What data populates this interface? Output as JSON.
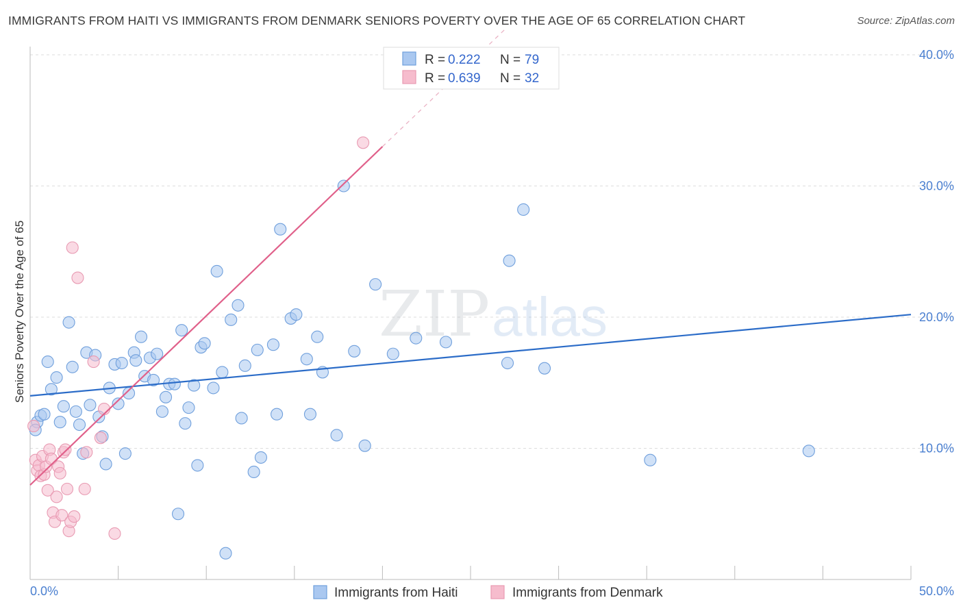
{
  "title": "IMMIGRANTS FROM HAITI VS IMMIGRANTS FROM DENMARK SENIORS POVERTY OVER THE AGE OF 65 CORRELATION CHART",
  "source": "Source: ZipAtlas.com",
  "watermark": {
    "zip": "ZIP",
    "atlas": "atlas"
  },
  "colors": {
    "haiti_fill": "#aac8f0",
    "haiti_stroke": "#6f9fdc",
    "haiti_line": "#2b6cc8",
    "denmark_fill": "#f6bccd",
    "denmark_stroke": "#e89ab2",
    "denmark_line": "#e0608a",
    "tick": "#4a7fd0",
    "grid": "#dddddd"
  },
  "legend_stats": [
    {
      "r_label": "R =",
      "r_value": "0.222",
      "n_label": "N =",
      "n_value": "79"
    },
    {
      "r_label": "R =",
      "r_value": "0.639",
      "n_label": "N =",
      "n_value": "32"
    }
  ],
  "chart_data": {
    "type": "scatter",
    "xlabel": "",
    "ylabel": "Seniors Poverty Over the Age of 65",
    "xlim": [
      0,
      50
    ],
    "ylim": [
      0,
      40
    ],
    "x_tick_labels": [
      "0.0%",
      "50.0%"
    ],
    "y_tick_labels": [
      "10.0%",
      "20.0%",
      "30.0%",
      "40.0%"
    ],
    "y_ticks": [
      10,
      20,
      30,
      40
    ],
    "legend": "bottom-center",
    "series": [
      {
        "name": "Immigrants from Haiti",
        "r": 0.222,
        "n": 79,
        "trend": {
          "x0": 0,
          "y0": 14.0,
          "x1": 50,
          "y1": 20.2
        },
        "points": [
          [
            0.4,
            12.0
          ],
          [
            0.6,
            12.5
          ],
          [
            0.8,
            12.6
          ],
          [
            1.0,
            16.6
          ],
          [
            1.2,
            14.5
          ],
          [
            1.5,
            15.4
          ],
          [
            1.7,
            12.0
          ],
          [
            1.9,
            13.2
          ],
          [
            2.2,
            19.6
          ],
          [
            2.4,
            16.2
          ],
          [
            2.6,
            12.8
          ],
          [
            2.8,
            11.8
          ],
          [
            3.0,
            9.6
          ],
          [
            3.2,
            17.3
          ],
          [
            3.4,
            13.3
          ],
          [
            3.7,
            17.1
          ],
          [
            3.9,
            12.4
          ],
          [
            4.1,
            10.9
          ],
          [
            4.3,
            8.8
          ],
          [
            4.5,
            14.6
          ],
          [
            4.8,
            16.4
          ],
          [
            5.0,
            13.4
          ],
          [
            5.2,
            16.5
          ],
          [
            5.4,
            9.6
          ],
          [
            5.6,
            14.2
          ],
          [
            5.9,
            17.3
          ],
          [
            6.0,
            16.7
          ],
          [
            6.3,
            18.5
          ],
          [
            6.5,
            15.5
          ],
          [
            6.8,
            16.9
          ],
          [
            7.0,
            15.2
          ],
          [
            7.2,
            17.2
          ],
          [
            7.5,
            12.8
          ],
          [
            7.7,
            13.9
          ],
          [
            7.9,
            14.9
          ],
          [
            8.2,
            14.9
          ],
          [
            8.4,
            5.0
          ],
          [
            8.6,
            19.0
          ],
          [
            8.8,
            11.9
          ],
          [
            9.0,
            13.1
          ],
          [
            9.3,
            14.8
          ],
          [
            9.5,
            8.7
          ],
          [
            9.7,
            17.7
          ],
          [
            9.9,
            18.0
          ],
          [
            10.4,
            14.6
          ],
          [
            10.6,
            23.5
          ],
          [
            10.9,
            15.8
          ],
          [
            11.1,
            2.0
          ],
          [
            11.4,
            19.8
          ],
          [
            11.8,
            20.9
          ],
          [
            12.0,
            12.3
          ],
          [
            12.2,
            16.3
          ],
          [
            12.7,
            8.2
          ],
          [
            12.9,
            17.5
          ],
          [
            13.1,
            9.3
          ],
          [
            13.8,
            17.9
          ],
          [
            14.0,
            12.6
          ],
          [
            14.2,
            26.7
          ],
          [
            14.8,
            19.9
          ],
          [
            15.1,
            20.2
          ],
          [
            15.7,
            16.8
          ],
          [
            15.9,
            12.6
          ],
          [
            16.3,
            18.5
          ],
          [
            16.6,
            15.8
          ],
          [
            17.4,
            11.0
          ],
          [
            17.8,
            30.0
          ],
          [
            18.4,
            17.4
          ],
          [
            19.0,
            10.2
          ],
          [
            19.6,
            22.5
          ],
          [
            20.6,
            17.2
          ],
          [
            21.9,
            18.4
          ],
          [
            23.6,
            18.1
          ],
          [
            27.1,
            16.5
          ],
          [
            27.2,
            24.3
          ],
          [
            28.0,
            28.2
          ],
          [
            29.2,
            16.1
          ],
          [
            35.2,
            9.1
          ],
          [
            44.2,
            9.8
          ],
          [
            0.3,
            11.4
          ]
        ]
      },
      {
        "name": "Immigrants from Denmark",
        "r": 0.639,
        "n": 32,
        "trend": {
          "x0": 0,
          "y0": 7.2,
          "x1": 20,
          "y1": 33.0,
          "dash_x1": 27,
          "dash_y1": 42.0
        },
        "points": [
          [
            0.2,
            11.7
          ],
          [
            0.3,
            9.1
          ],
          [
            0.4,
            8.3
          ],
          [
            0.5,
            8.7
          ],
          [
            0.6,
            7.9
          ],
          [
            0.7,
            9.4
          ],
          [
            0.8,
            8.0
          ],
          [
            0.9,
            8.6
          ],
          [
            1.0,
            6.8
          ],
          [
            1.1,
            9.9
          ],
          [
            1.2,
            9.2
          ],
          [
            1.3,
            5.1
          ],
          [
            1.4,
            4.4
          ],
          [
            1.5,
            6.3
          ],
          [
            1.6,
            8.6
          ],
          [
            1.7,
            8.1
          ],
          [
            1.8,
            4.9
          ],
          [
            1.9,
            9.7
          ],
          [
            2.0,
            9.9
          ],
          [
            2.1,
            6.9
          ],
          [
            2.2,
            3.7
          ],
          [
            2.3,
            4.4
          ],
          [
            2.4,
            25.3
          ],
          [
            2.5,
            4.8
          ],
          [
            2.7,
            23.0
          ],
          [
            3.1,
            6.9
          ],
          [
            3.2,
            9.7
          ],
          [
            3.6,
            16.6
          ],
          [
            4.0,
            10.8
          ],
          [
            4.2,
            13.0
          ],
          [
            4.8,
            3.5
          ],
          [
            18.9,
            33.3
          ]
        ]
      }
    ]
  }
}
